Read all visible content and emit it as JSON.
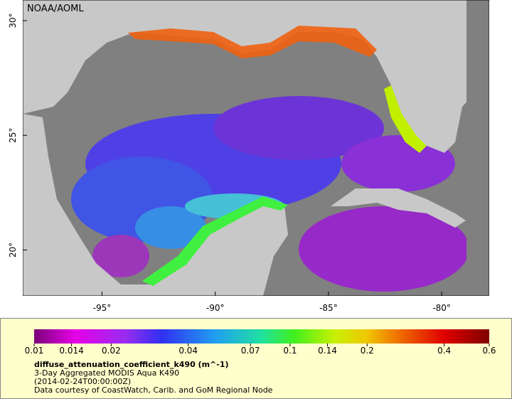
{
  "map": {
    "credit": "NOAA/AOML",
    "xlim": [
      -98.5,
      -77.9
    ],
    "ylim": [
      18,
      30.9
    ],
    "xticks": [
      {
        "value": -95,
        "label": "-95°"
      },
      {
        "value": -90,
        "label": "-90°"
      },
      {
        "value": -85,
        "label": "-85°"
      },
      {
        "value": -80,
        "label": "-80°"
      }
    ],
    "yticks": [
      {
        "value": 20,
        "label": "20°"
      },
      {
        "value": 25,
        "label": "25°"
      },
      {
        "value": 30,
        "label": "30°"
      }
    ]
  },
  "colorbar": {
    "scale": "log",
    "range": [
      0.01,
      0.6
    ],
    "ticks": [
      0.01,
      0.014,
      0.02,
      0.04,
      0.07,
      0.1,
      0.14,
      0.2,
      0.4,
      0.6
    ],
    "variable": "diffuse_attenuation_coefficient_k490 (m^-1)",
    "title": "3-Day Aggregated MODIS Aqua K490",
    "time": "(2014-02-24T00:00:00Z)",
    "credit": "Data courtesy of CoastWatch, Carib. and GoM Regional Node"
  }
}
